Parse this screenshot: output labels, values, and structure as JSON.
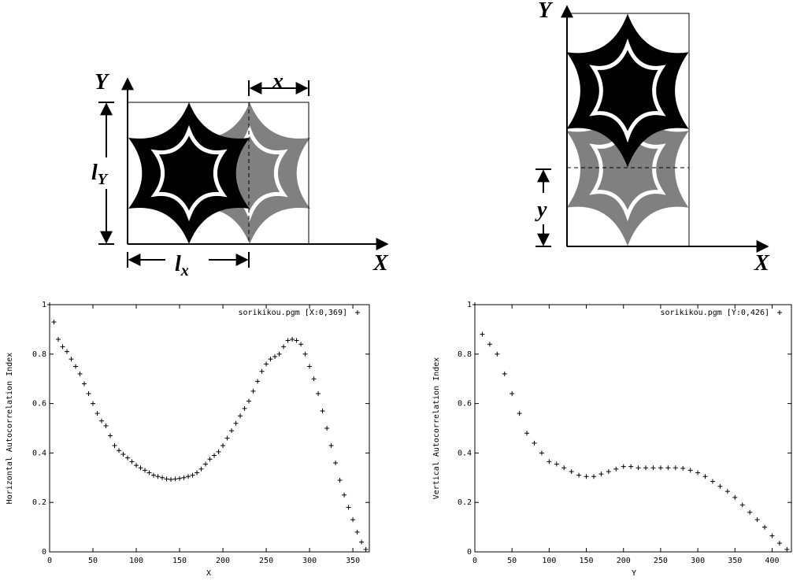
{
  "diagrams": [
    {
      "labels": {
        "y_axis": "Y",
        "x_axis": "X",
        "shift": "x",
        "height": {
          "text": "l",
          "sub": "Y"
        },
        "width": {
          "text": "l",
          "sub": "x"
        }
      }
    },
    {
      "labels": {
        "y_axis": "Y",
        "x_axis": "X",
        "shift": "y"
      }
    }
  ],
  "chart_data": [
    {
      "type": "scatter",
      "marker": "+",
      "xlabel": "X",
      "ylabel": "Horizontal Autocorrelation Index",
      "xlim": [
        0,
        369
      ],
      "ylim": [
        0,
        1
      ],
      "xticks": [
        0,
        50,
        100,
        150,
        200,
        250,
        300,
        350
      ],
      "yticks": [
        0,
        0.2,
        0.4,
        0.6,
        0.8,
        1
      ],
      "legend": "upper right",
      "x": [
        0,
        5,
        10,
        15,
        20,
        25,
        30,
        35,
        40,
        45,
        50,
        55,
        60,
        65,
        70,
        75,
        80,
        85,
        90,
        95,
        100,
        105,
        110,
        115,
        120,
        125,
        130,
        135,
        140,
        145,
        150,
        155,
        160,
        165,
        170,
        175,
        180,
        185,
        190,
        195,
        200,
        205,
        210,
        215,
        220,
        225,
        230,
        235,
        240,
        245,
        250,
        255,
        260,
        265,
        270,
        275,
        280,
        285,
        290,
        295,
        300,
        305,
        310,
        315,
        320,
        325,
        330,
        335,
        340,
        345,
        350,
        355,
        360,
        365
      ],
      "series": [
        {
          "name": "sorikikou.pgm [X:0,369]",
          "color": "#000000",
          "values": [
            1.0,
            0.93,
            0.86,
            0.83,
            0.81,
            0.78,
            0.75,
            0.72,
            0.68,
            0.64,
            0.6,
            0.56,
            0.53,
            0.51,
            0.47,
            0.43,
            0.41,
            0.395,
            0.38,
            0.365,
            0.35,
            0.34,
            0.33,
            0.32,
            0.31,
            0.305,
            0.3,
            0.295,
            0.293,
            0.295,
            0.297,
            0.3,
            0.305,
            0.31,
            0.32,
            0.335,
            0.355,
            0.375,
            0.39,
            0.405,
            0.43,
            0.46,
            0.49,
            0.52,
            0.55,
            0.58,
            0.61,
            0.65,
            0.69,
            0.73,
            0.76,
            0.78,
            0.79,
            0.8,
            0.83,
            0.855,
            0.86,
            0.855,
            0.84,
            0.8,
            0.75,
            0.7,
            0.64,
            0.57,
            0.5,
            0.43,
            0.36,
            0.29,
            0.23,
            0.18,
            0.13,
            0.08,
            0.04,
            0.01
          ]
        }
      ]
    },
    {
      "type": "scatter",
      "marker": "+",
      "xlabel": "Y",
      "ylabel": "Vertical Autocorrelation Index",
      "xlim": [
        0,
        426
      ],
      "ylim": [
        0,
        1
      ],
      "xticks": [
        0,
        50,
        100,
        150,
        200,
        250,
        300,
        350,
        400
      ],
      "yticks": [
        0,
        0.2,
        0.4,
        0.6,
        0.8,
        1
      ],
      "legend": "upper right",
      "x": [
        0,
        10,
        20,
        30,
        40,
        50,
        60,
        70,
        80,
        90,
        100,
        110,
        120,
        130,
        140,
        150,
        160,
        170,
        180,
        190,
        200,
        210,
        220,
        230,
        240,
        250,
        260,
        270,
        280,
        290,
        300,
        310,
        320,
        330,
        340,
        350,
        360,
        370,
        380,
        390,
        400,
        410,
        420
      ],
      "series": [
        {
          "name": "sorikikou.pgm [Y:0,426]",
          "color": "#000000",
          "values": [
            1.0,
            0.88,
            0.84,
            0.8,
            0.72,
            0.64,
            0.56,
            0.48,
            0.44,
            0.4,
            0.365,
            0.355,
            0.34,
            0.325,
            0.31,
            0.305,
            0.305,
            0.315,
            0.325,
            0.335,
            0.345,
            0.345,
            0.34,
            0.34,
            0.34,
            0.34,
            0.34,
            0.34,
            0.338,
            0.33,
            0.32,
            0.305,
            0.285,
            0.265,
            0.245,
            0.22,
            0.19,
            0.16,
            0.13,
            0.1,
            0.065,
            0.035,
            0.01
          ]
        }
      ]
    }
  ]
}
